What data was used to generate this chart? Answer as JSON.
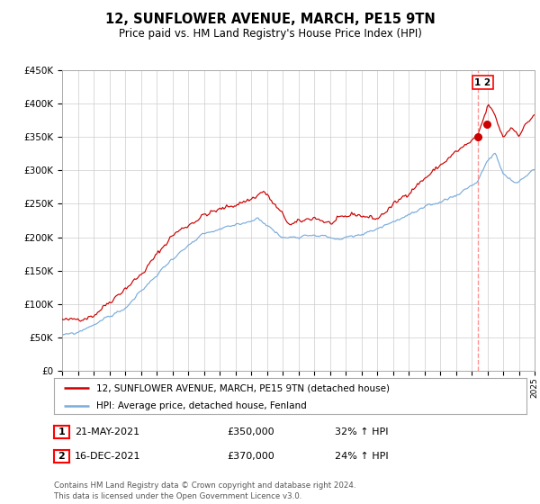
{
  "title": "12, SUNFLOWER AVENUE, MARCH, PE15 9TN",
  "subtitle": "Price paid vs. HM Land Registry's House Price Index (HPI)",
  "red_label": "12, SUNFLOWER AVENUE, MARCH, PE15 9TN (detached house)",
  "blue_label": "HPI: Average price, detached house, Fenland",
  "red_color": "#cc0000",
  "blue_color": "#7aacdc",
  "dashed_color": "#ff8888",
  "marker_color": "#cc0000",
  "point1_date": 2021.38,
  "point1_value": 350000,
  "point2_date": 2021.96,
  "point2_value": 370000,
  "table_row1": [
    "1",
    "21-MAY-2021",
    "£350,000",
    "32% ↑ HPI"
  ],
  "table_row2": [
    "2",
    "16-DEC-2021",
    "£370,000",
    "24% ↑ HPI"
  ],
  "footer": "Contains HM Land Registry data © Crown copyright and database right 2024.\nThis data is licensed under the Open Government Licence v3.0.",
  "xmin": 1995,
  "xmax": 2025,
  "ymin": 0,
  "ymax": 450000,
  "yticks": [
    0,
    50000,
    100000,
    150000,
    200000,
    250000,
    300000,
    350000,
    400000,
    450000
  ],
  "background_color": "#ffffff",
  "grid_color": "#cccccc"
}
